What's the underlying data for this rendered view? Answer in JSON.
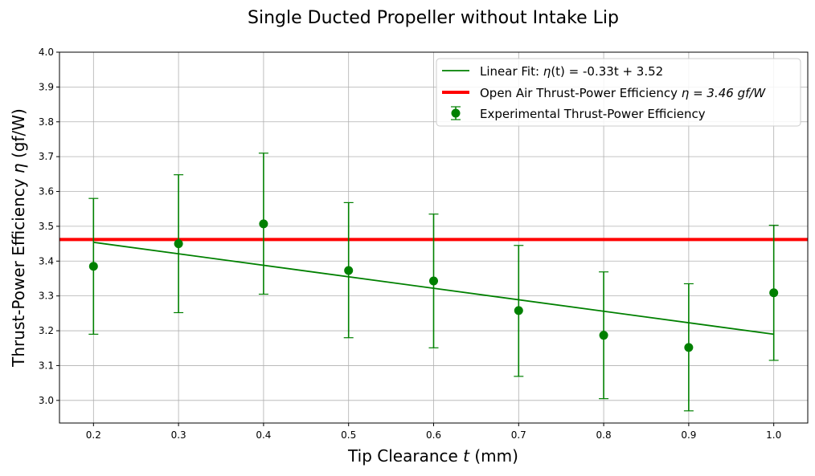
{
  "chart_data": {
    "type": "scatter",
    "title": "Single Ducted Propeller without Intake Lip",
    "xlabel_prefix": "Tip Clearance ",
    "xlabel_var": "t",
    "xlabel_suffix": " (mm)",
    "ylabel_prefix": "Thrust-Power Efficiency ",
    "ylabel_var": "η",
    "ylabel_suffix": " (gf/W)",
    "xlim": [
      0.16,
      1.04
    ],
    "ylim": [
      2.935,
      4.0
    ],
    "xticks": [
      "0.2",
      "0.3",
      "0.4",
      "0.5",
      "0.6",
      "0.7",
      "0.8",
      "0.9",
      "1.0"
    ],
    "yticks": [
      "3.0",
      "3.1",
      "3.2",
      "3.3",
      "3.4",
      "3.5",
      "3.6",
      "3.7",
      "3.8",
      "3.9",
      "4.0"
    ],
    "grid": true,
    "legend_position": "upper-right",
    "series": [
      {
        "name": "Experimental Thrust-Power Efficiency",
        "kind": "errorbar",
        "color": "#008000",
        "x": [
          0.2,
          0.3,
          0.4,
          0.5,
          0.6,
          0.7,
          0.8,
          0.9,
          1.0
        ],
        "y": [
          3.385,
          3.45,
          3.507,
          3.373,
          3.343,
          3.258,
          3.187,
          3.152,
          3.309
        ],
        "err_low": [
          3.19,
          3.252,
          3.305,
          3.18,
          3.151,
          3.069,
          3.005,
          2.97,
          3.115
        ],
        "err_high": [
          3.58,
          3.648,
          3.71,
          3.568,
          3.535,
          3.445,
          3.369,
          3.335,
          3.503
        ]
      },
      {
        "name_prefix": "Linear Fit: ",
        "name_var": "η",
        "name_suffix": "(t) = -0.33t + 3.52",
        "kind": "line",
        "color": "#008000",
        "slope": -0.33,
        "intercept": 3.52,
        "x_range": [
          0.2,
          1.0
        ]
      },
      {
        "name_prefix": "Open Air Thrust-Power Efficiency ",
        "name_var": "η = 3.46 gf/W",
        "kind": "hline",
        "color": "#ff0000",
        "y": 3.462
      }
    ]
  }
}
